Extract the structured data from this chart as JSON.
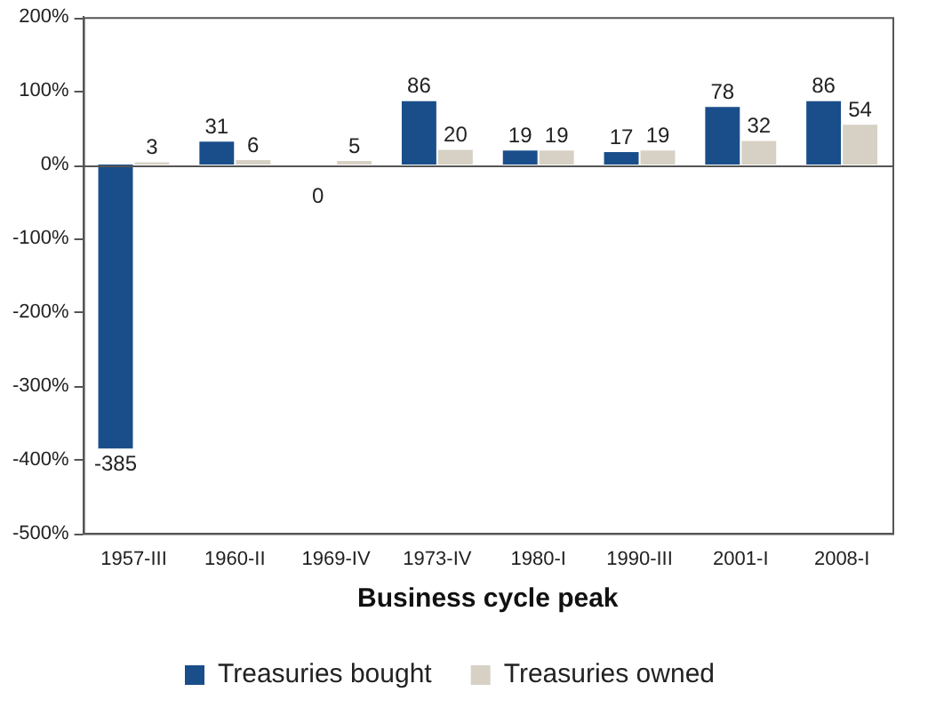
{
  "chart_data": {
    "type": "bar",
    "xlabel": "Business cycle peak",
    "categories": [
      "1957-III",
      "1960-II",
      "1969-IV",
      "1973-IV",
      "1980-I",
      "1990-III",
      "2001-I",
      "2008-I"
    ],
    "series": [
      {
        "name": "Treasuries bought",
        "color": "#1a4e8a",
        "values": [
          -385,
          31,
          0,
          86,
          19,
          17,
          78,
          86
        ]
      },
      {
        "name": "Treasuries owned",
        "color": "#d6d1c4",
        "values": [
          3,
          6,
          5,
          20,
          19,
          19,
          32,
          54
        ]
      }
    ],
    "ylim": [
      -500,
      200
    ],
    "yticks": [
      {
        "value": -500,
        "label": "-500%"
      },
      {
        "value": -400,
        "label": "-400%"
      },
      {
        "value": -300,
        "label": "-300%"
      },
      {
        "value": -200,
        "label": "-200%"
      },
      {
        "value": -100,
        "label": "-100%"
      },
      {
        "value": 0,
        "label": "0%"
      },
      {
        "value": 100,
        "label": "100%"
      },
      {
        "value": 200,
        "label": "200%"
      }
    ],
    "data_labels": true,
    "legend": "bottom"
  }
}
